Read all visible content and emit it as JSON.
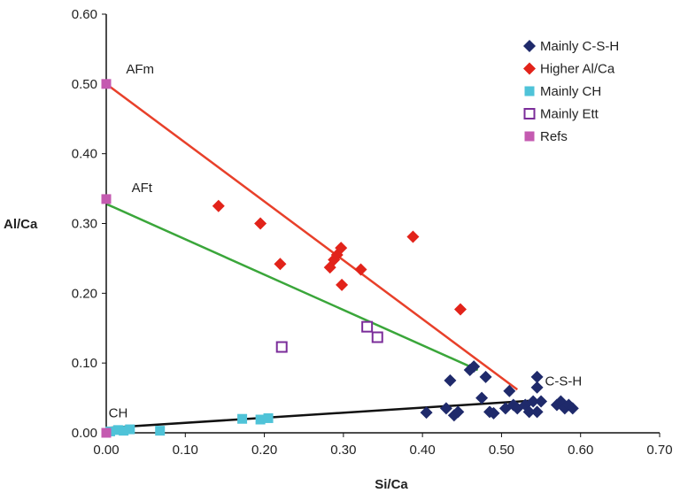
{
  "chart_data": {
    "type": "scatter",
    "title": "",
    "xlabel": "Si/Ca",
    "ylabel": "Al/Ca",
    "xlim": [
      0,
      0.7
    ],
    "ylim": [
      0,
      0.6
    ],
    "x_ticks": [
      "0.00",
      "0.10",
      "0.20",
      "0.30",
      "0.40",
      "0.50",
      "0.60",
      "0.70"
    ],
    "y_ticks": [
      "0.00",
      "0.10",
      "0.20",
      "0.30",
      "0.40",
      "0.50",
      "0.60"
    ],
    "grid": false,
    "legend_position": "top-right",
    "series": [
      {
        "name": "Mainly C-S-H",
        "marker": "diamond",
        "color": "#1f2a6b",
        "points": [
          [
            0.405,
            0.029
          ],
          [
            0.43,
            0.035
          ],
          [
            0.435,
            0.075
          ],
          [
            0.44,
            0.025
          ],
          [
            0.445,
            0.03
          ],
          [
            0.46,
            0.09
          ],
          [
            0.465,
            0.095
          ],
          [
            0.475,
            0.05
          ],
          [
            0.48,
            0.08
          ],
          [
            0.485,
            0.03
          ],
          [
            0.49,
            0.028
          ],
          [
            0.505,
            0.035
          ],
          [
            0.51,
            0.06
          ],
          [
            0.515,
            0.04
          ],
          [
            0.52,
            0.035
          ],
          [
            0.53,
            0.04
          ],
          [
            0.535,
            0.03
          ],
          [
            0.54,
            0.045
          ],
          [
            0.545,
            0.08
          ],
          [
            0.545,
            0.065
          ],
          [
            0.545,
            0.03
          ],
          [
            0.55,
            0.045
          ],
          [
            0.57,
            0.04
          ],
          [
            0.575,
            0.045
          ],
          [
            0.58,
            0.035
          ],
          [
            0.585,
            0.04
          ],
          [
            0.59,
            0.035
          ]
        ]
      },
      {
        "name": "Higher Al/Ca",
        "marker": "diamond",
        "color": "#e2231a",
        "points": [
          [
            0.142,
            0.325
          ],
          [
            0.195,
            0.3
          ],
          [
            0.22,
            0.242
          ],
          [
            0.283,
            0.237
          ],
          [
            0.288,
            0.248
          ],
          [
            0.292,
            0.255
          ],
          [
            0.297,
            0.265
          ],
          [
            0.298,
            0.212
          ],
          [
            0.322,
            0.234
          ],
          [
            0.388,
            0.281
          ],
          [
            0.448,
            0.177
          ]
        ]
      },
      {
        "name": "Mainly CH",
        "marker": "square",
        "color": "#4fc3d8",
        "points": [
          [
            0.005,
            0.002
          ],
          [
            0.015,
            0.004
          ],
          [
            0.022,
            0.003
          ],
          [
            0.03,
            0.005
          ],
          [
            0.068,
            0.003
          ],
          [
            0.172,
            0.02
          ],
          [
            0.195,
            0.019
          ],
          [
            0.205,
            0.021
          ]
        ]
      },
      {
        "name": "Mainly Ett",
        "marker": "open-square",
        "color": "#7b2d9a",
        "points": [
          [
            0.222,
            0.123
          ],
          [
            0.33,
            0.152
          ],
          [
            0.343,
            0.137
          ]
        ]
      },
      {
        "name": "Refs",
        "marker": "square",
        "color": "#c45ab0",
        "points": [
          [
            0.0,
            0.5
          ],
          [
            0.0,
            0.335
          ],
          [
            0.0,
            0.0
          ]
        ]
      }
    ],
    "lines": [
      {
        "color": "#e8402a",
        "from": [
          0.0,
          0.5
        ],
        "to": [
          0.52,
          0.062
        ]
      },
      {
        "color": "#3aa63a",
        "from": [
          0.0,
          0.328
        ],
        "to": [
          0.47,
          0.09
        ]
      },
      {
        "color": "#111111",
        "from": [
          0.0,
          0.007
        ],
        "to": [
          0.55,
          0.047
        ]
      }
    ],
    "annotations": [
      {
        "text": "AFm",
        "x": 0.025,
        "y": 0.515
      },
      {
        "text": "AFt",
        "x": 0.032,
        "y": 0.345
      },
      {
        "text": "C-S-H",
        "x": 0.555,
        "y": 0.068
      },
      {
        "text": "CH",
        "x": 0.003,
        "y": 0.022
      }
    ]
  }
}
